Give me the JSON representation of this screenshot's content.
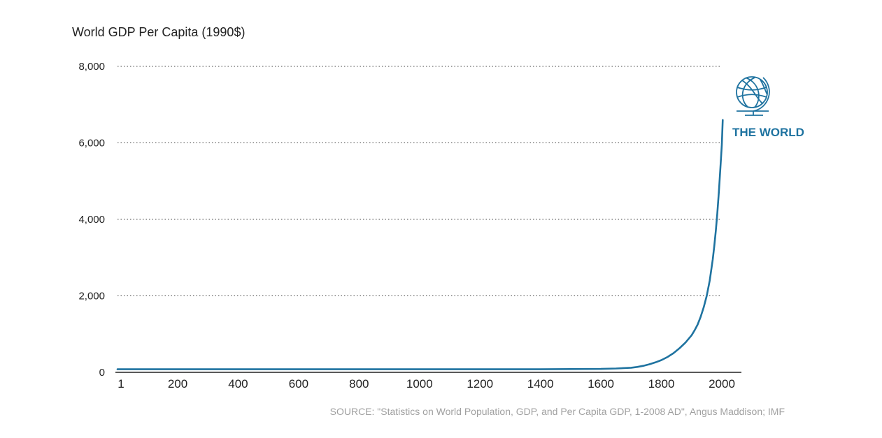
{
  "colors": {
    "series": "#1f73a0",
    "text": "#222222",
    "source_text": "#a0a0a0"
  },
  "chart_data": {
    "type": "line",
    "title": "World GDP Per Capita (1990$)",
    "xlabel": "",
    "ylabel": "",
    "xlim": [
      1,
      2000
    ],
    "ylim": [
      0,
      8000
    ],
    "grid": true,
    "legend": "none",
    "y_ticks": [
      {
        "value": 0,
        "label": "0"
      },
      {
        "value": 2000,
        "label": "2,000"
      },
      {
        "value": 4000,
        "label": "4,000"
      },
      {
        "value": 6000,
        "label": "6,000"
      },
      {
        "value": 8000,
        "label": "8,000"
      }
    ],
    "x_ticks": [
      {
        "value": 1,
        "label": "1"
      },
      {
        "value": 200,
        "label": "200"
      },
      {
        "value": 400,
        "label": "400"
      },
      {
        "value": 600,
        "label": "600"
      },
      {
        "value": 800,
        "label": "800"
      },
      {
        "value": 1000,
        "label": "1000"
      },
      {
        "value": 1200,
        "label": "1200"
      },
      {
        "value": 1400,
        "label": "1400"
      },
      {
        "value": 1600,
        "label": "1600"
      },
      {
        "value": 1800,
        "label": "1800"
      },
      {
        "value": 2000,
        "label": "2000"
      }
    ],
    "series": [
      {
        "x": [
          1,
          200,
          400,
          600,
          800,
          1000,
          1200,
          1400,
          1500,
          1600,
          1650,
          1700,
          1720,
          1740,
          1760,
          1780,
          1800,
          1820,
          1840,
          1860,
          1880,
          1900,
          1910,
          1920,
          1930,
          1940,
          1950,
          1960,
          1970,
          1975,
          1980,
          1985,
          1990,
          1995,
          2000,
          2003
        ],
        "y": [
          80,
          80,
          80,
          80,
          80,
          80,
          80,
          80,
          85,
          90,
          100,
          120,
          140,
          170,
          210,
          260,
          320,
          400,
          500,
          630,
          780,
          970,
          1100,
          1250,
          1450,
          1700,
          2000,
          2400,
          2950,
          3300,
          3700,
          4150,
          4700,
          5300,
          5950,
          6600
        ]
      }
    ],
    "annotations": [
      {
        "text": "THE WORLD",
        "icon": "globe-icon"
      }
    ],
    "source": "SOURCE: \"Statistics on World Population, GDP, and Per Capita GDP, 1-2008 AD\", Angus Maddison; IMF"
  }
}
